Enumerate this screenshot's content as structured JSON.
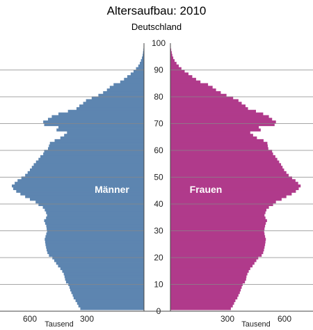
{
  "chart_data": {
    "type": "bar",
    "orientation": "horizontal-population-pyramid",
    "title": "Altersaufbau: 2010",
    "subtitle": "Deutschland",
    "age_axis": {
      "range": [
        0,
        100
      ],
      "ticks": [
        "0",
        "10",
        "20",
        "30",
        "40",
        "50",
        "60",
        "70",
        "80",
        "90",
        "100"
      ]
    },
    "value_axis": {
      "unit_label": "Tausend",
      "left_ticks": [
        "600",
        "300"
      ],
      "right_ticks": [
        "300",
        "600"
      ],
      "max": 700
    },
    "colors": {
      "male": "#5d85b0",
      "female": "#b03a8b",
      "gridline": "#888888"
    },
    "labels": {
      "male": "Männer",
      "female": "Frauen"
    },
    "age_groups": [
      0,
      1,
      2,
      3,
      4,
      5,
      6,
      7,
      8,
      9,
      10,
      11,
      12,
      13,
      14,
      15,
      16,
      17,
      18,
      19,
      20,
      21,
      22,
      23,
      24,
      25,
      26,
      27,
      28,
      29,
      30,
      31,
      32,
      33,
      34,
      35,
      36,
      37,
      38,
      39,
      40,
      41,
      42,
      43,
      44,
      45,
      46,
      47,
      48,
      49,
      50,
      51,
      52,
      53,
      54,
      55,
      56,
      57,
      58,
      59,
      60,
      61,
      62,
      63,
      64,
      65,
      66,
      67,
      68,
      69,
      70,
      71,
      72,
      73,
      74,
      75,
      76,
      77,
      78,
      79,
      80,
      81,
      82,
      83,
      84,
      85,
      86,
      87,
      88,
      89,
      90,
      91,
      92,
      93,
      94,
      95,
      96,
      97,
      98,
      99
    ],
    "series": [
      {
        "name": "Männer",
        "values": [
          335,
          345,
          352,
          360,
          370,
          375,
          382,
          388,
          392,
          398,
          410,
          415,
          418,
          422,
          430,
          440,
          452,
          462,
          472,
          482,
          500,
          508,
          512,
          515,
          518,
          520,
          522,
          518,
          514,
          510,
          512,
          514,
          520,
          525,
          515,
          510,
          515,
          522,
          532,
          555,
          570,
          600,
          625,
          650,
          672,
          688,
          695,
          680,
          665,
          645,
          625,
          612,
          600,
          590,
          580,
          568,
          555,
          545,
          530,
          525,
          505,
          500,
          495,
          470,
          440,
          420,
          405,
          460,
          450,
          525,
          530,
          505,
          485,
          450,
          400,
          355,
          340,
          320,
          305,
          275,
          240,
          215,
          195,
          180,
          160,
          125,
          105,
          88,
          70,
          55,
          42,
          30,
          22,
          16,
          11,
          7,
          5,
          3,
          2,
          1
        ]
      },
      {
        "name": "Frauen",
        "values": [
          318,
          328,
          335,
          342,
          352,
          358,
          365,
          370,
          375,
          380,
          392,
          398,
          400,
          405,
          412,
          420,
          432,
          442,
          452,
          462,
          480,
          488,
          492,
          495,
          498,
          500,
          502,
          498,
          495,
          493,
          495,
          498,
          502,
          508,
          500,
          495,
          500,
          505,
          518,
          540,
          555,
          585,
          610,
          638,
          660,
          675,
          685,
          672,
          658,
          640,
          622,
          610,
          598,
          590,
          582,
          572,
          562,
          552,
          540,
          535,
          515,
          512,
          510,
          490,
          455,
          435,
          420,
          475,
          465,
          548,
          555,
          535,
          518,
          488,
          450,
          408,
          395,
          375,
          358,
          330,
          295,
          265,
          240,
          222,
          198,
          158,
          135,
          115,
          95,
          75,
          58,
          44,
          32,
          22,
          15,
          10,
          7,
          4,
          2,
          1
        ]
      }
    ]
  }
}
